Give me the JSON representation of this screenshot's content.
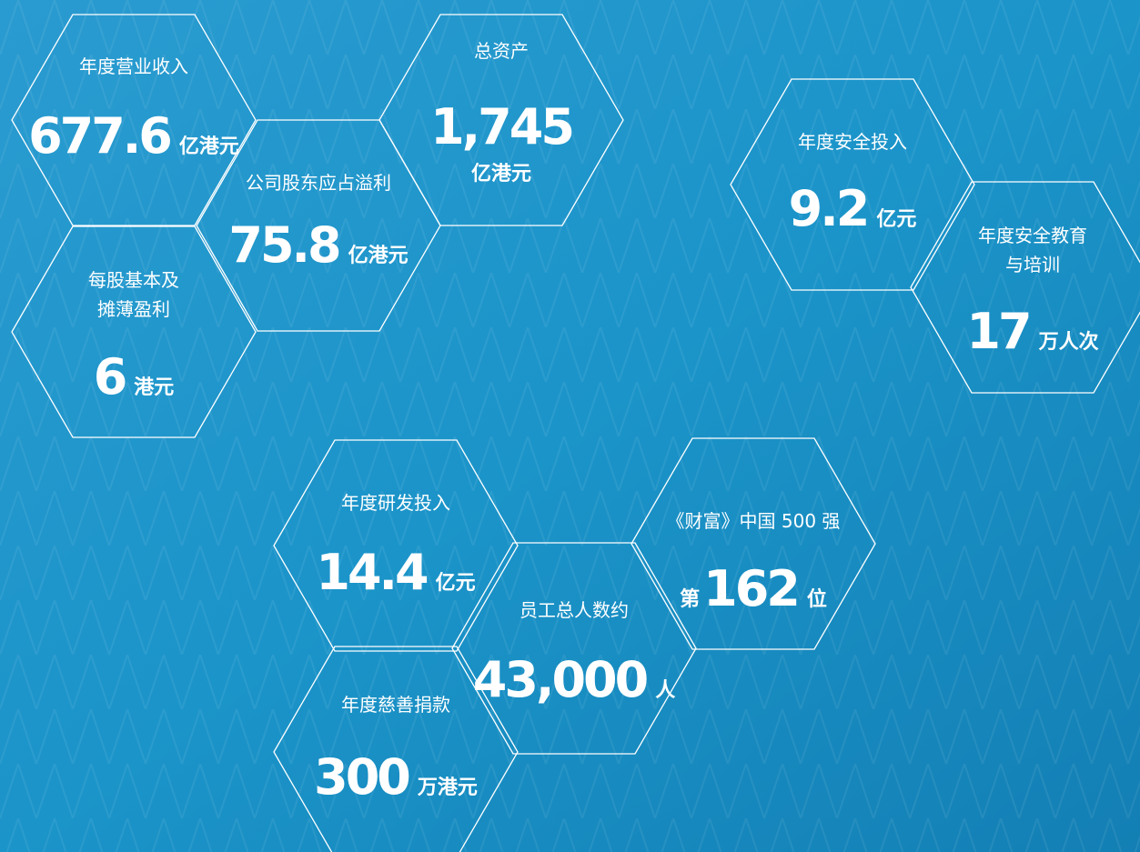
{
  "hexagons": [
    {
      "label": [
        "年度营业收入"
      ],
      "value": "677.6",
      "unit": "亿港元"
    },
    {
      "label": [
        "总资产"
      ],
      "value": "1,745",
      "unit": "亿港元"
    },
    {
      "label": [
        "公司股东应占溢利"
      ],
      "value": "75.8",
      "unit": "亿港元"
    },
    {
      "label": [
        "每股基本及",
        "摊薄盈利"
      ],
      "value": "6",
      "unit": "港元"
    },
    {
      "label": [
        "年度安全投入"
      ],
      "value": "9.2",
      "unit": "亿元"
    },
    {
      "label": [
        "年度安全教育",
        "与培训"
      ],
      "value": "17",
      "unit": "万人次"
    },
    {
      "label": [
        "年度研发投入"
      ],
      "value": "14.4",
      "unit": "亿元"
    },
    {
      "label": [
        "《财富》中国 500 强"
      ],
      "prefix": "第",
      "value": "162",
      "unit": "位"
    },
    {
      "label": [
        "员工总人数约"
      ],
      "value": "43,000",
      "unit": "人"
    },
    {
      "label": [
        "年度慈善捐款"
      ],
      "value": "300",
      "unit": "万港元"
    }
  ]
}
